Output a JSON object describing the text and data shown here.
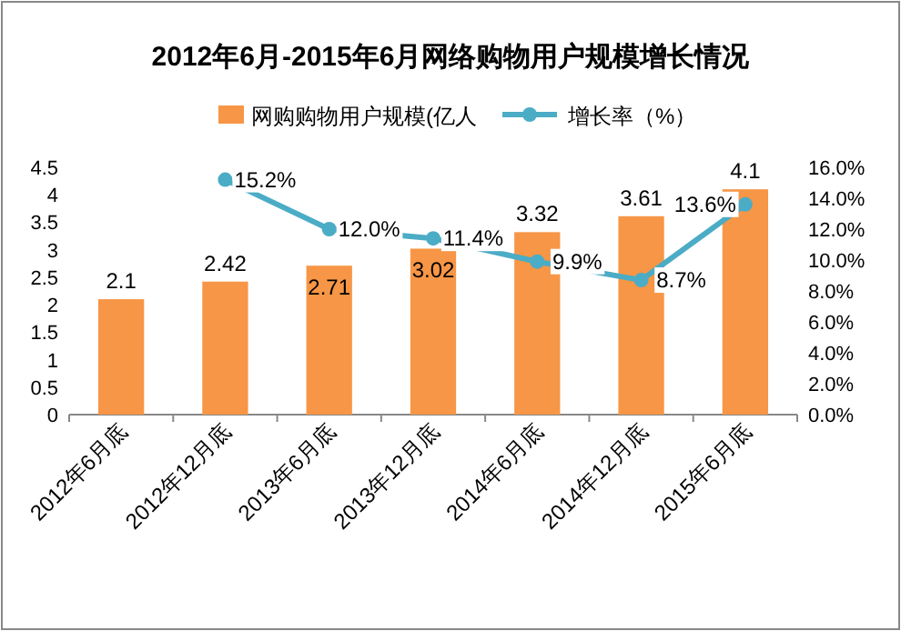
{
  "chart_data": {
    "type": "bar",
    "title": "2012年6月-2015年6月网络购物用户规模增长情况",
    "categories": [
      "2012年6月底",
      "2012年12月底",
      "2013年6月底",
      "2013年12月底",
      "2014年6月底",
      "2014年12月底",
      "2015年6月底"
    ],
    "series": [
      {
        "name": "网购购物用户规模(亿人",
        "color": "#f79646",
        "values": [
          2.1,
          2.42,
          2.71,
          3.02,
          3.32,
          3.61,
          4.1
        ],
        "value_labels": [
          "2.1",
          "2.42",
          "2.71",
          "3.02",
          "3.32",
          "3.61",
          "4.1"
        ]
      },
      {
        "name": "增长率（%）",
        "type": "line",
        "axis": "y2",
        "color": "#4bacc6",
        "marker": "circle",
        "values": [
          null,
          15.2,
          12.0,
          11.4,
          9.9,
          8.7,
          13.6
        ],
        "value_labels": [
          null,
          "15.2%",
          "12.0%",
          "11.4%",
          "9.9%",
          "8.7%",
          "13.6%"
        ]
      }
    ],
    "ylim": [
      0,
      4.5
    ],
    "yticks": [
      0,
      0.5,
      1,
      1.5,
      2,
      2.5,
      3,
      3.5,
      4,
      4.5
    ],
    "y2lim": [
      0,
      16
    ],
    "y2ticks": [
      {
        "value": 0,
        "label": "0.0%"
      },
      {
        "value": 2,
        "label": "2.0%"
      },
      {
        "value": 4,
        "label": "4.0%"
      },
      {
        "value": 6,
        "label": "6.0%"
      },
      {
        "value": 8,
        "label": "8.0%"
      },
      {
        "value": 10,
        "label": "10.0%"
      },
      {
        "value": 12,
        "label": "12.0%"
      },
      {
        "value": 14,
        "label": "14.0%"
      },
      {
        "value": 16,
        "label": "16.0%"
      }
    ],
    "legend": "top"
  }
}
